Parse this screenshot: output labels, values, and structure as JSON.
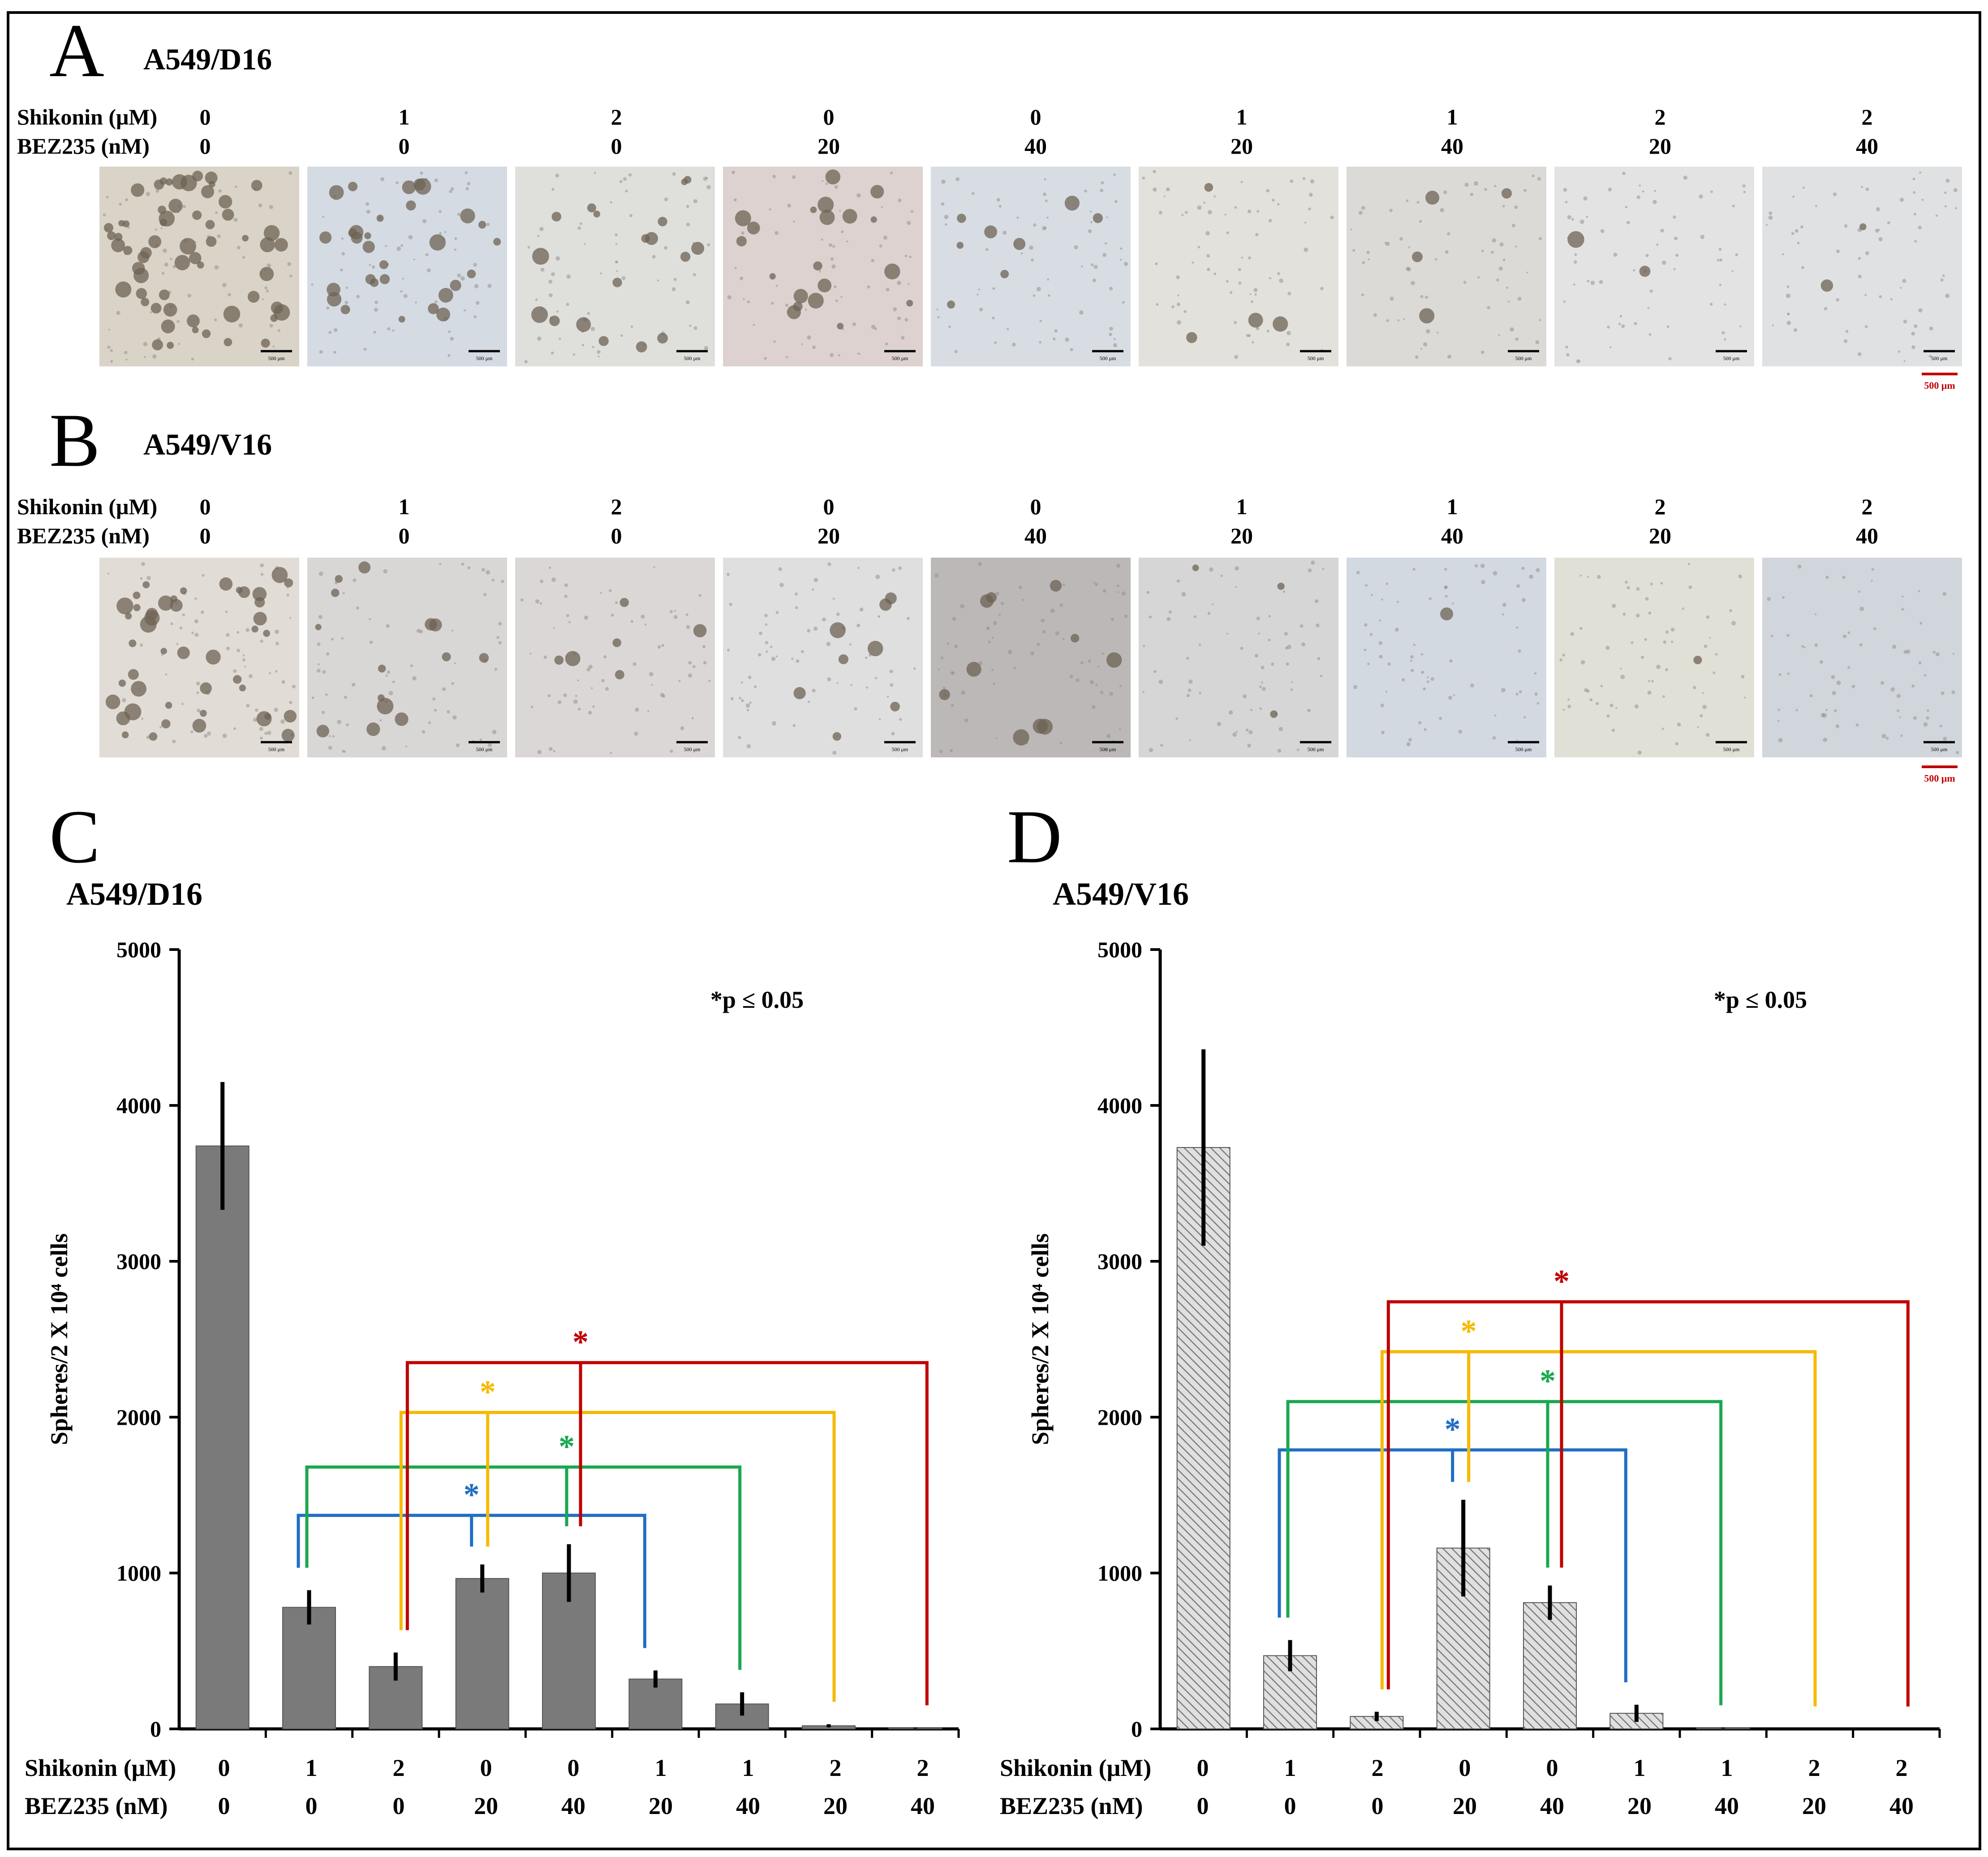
{
  "figure": {
    "panel_a": {
      "letter": "A",
      "cell_line": "A549/D16"
    },
    "panel_b": {
      "letter": "B",
      "cell_line": "A549/V16"
    },
    "panel_c": {
      "letter": "C",
      "cell_line": "A549/D16"
    },
    "panel_d": {
      "letter": "D",
      "cell_line": "A549/V16"
    },
    "condition_labels": {
      "shikonin": "Shikonin (μM)",
      "bez235": "BEZ235 (nM)"
    },
    "shikonin_values": [
      "0",
      "1",
      "2",
      "0",
      "0",
      "1",
      "1",
      "2",
      "2"
    ],
    "bez235_values": [
      "0",
      "0",
      "0",
      "20",
      "40",
      "20",
      "40",
      "20",
      "40"
    ],
    "image_scalebar_label": "500 μm",
    "red_scalebar_label": "500 μm",
    "colors": {
      "blue": "#1f6fc4",
      "green": "#1aa84f",
      "yellow": "#f7b900",
      "red": "#c00000",
      "bar_c": "#7a7a7a",
      "bar_d": "#bdbdbd"
    }
  },
  "chart_data": [
    {
      "type": "bar",
      "panel": "C",
      "title": "A549/D16",
      "ylabel": "Spheres/2 X 10⁴ cells",
      "ylim": [
        0,
        5000
      ],
      "yticks": [
        0,
        1000,
        2000,
        3000,
        4000,
        5000
      ],
      "ytick_labels": [
        "0",
        "1000",
        "2000",
        "3000",
        "4000",
        "5000"
      ],
      "categories": [
        "0/0",
        "1/0",
        "2/0",
        "0/20",
        "0/40",
        "1/20",
        "1/40",
        "2/20",
        "2/40"
      ],
      "values": [
        3740,
        780,
        400,
        965,
        1000,
        320,
        160,
        20,
        5
      ],
      "errors": [
        410,
        110,
        90,
        90,
        185,
        55,
        75,
        10,
        3
      ],
      "annotation": "*p ≤ 0.05",
      "significance_brackets": [
        {
          "color": "blue",
          "from": "1/0",
          "to": "1/20",
          "mid": "0/20",
          "level": 1370
        },
        {
          "color": "green",
          "from": "1/0",
          "to": "1/40",
          "mid": "0/40",
          "level": 1680
        },
        {
          "color": "yellow",
          "from": "2/0",
          "to": "2/20",
          "mid": "0/20",
          "level": 2030
        },
        {
          "color": "red",
          "from": "2/0",
          "to": "2/40",
          "mid": "0/40",
          "level": 2350
        }
      ]
    },
    {
      "type": "bar",
      "panel": "D",
      "title": "A549/V16",
      "ylabel": "Spheres/2 X 10⁴ cells",
      "ylim": [
        0,
        5000
      ],
      "yticks": [
        0,
        1000,
        2000,
        3000,
        4000,
        5000
      ],
      "ytick_labels": [
        "0",
        "1000",
        "2000",
        "3000",
        "4000",
        "5000"
      ],
      "categories": [
        "0/0",
        "1/0",
        "2/0",
        "0/20",
        "0/40",
        "1/20",
        "1/40",
        "2/20",
        "2/40"
      ],
      "values": [
        3730,
        470,
        80,
        1160,
        810,
        100,
        5,
        0,
        0
      ],
      "errors": [
        630,
        100,
        30,
        310,
        110,
        55,
        3,
        0,
        0
      ],
      "annotation": "*p ≤ 0.05",
      "significance_brackets": [
        {
          "color": "blue",
          "from": "1/0",
          "to": "1/20",
          "mid": "0/20",
          "level": 1790
        },
        {
          "color": "green",
          "from": "1/0",
          "to": "1/40",
          "mid": "0/40",
          "level": 2100
        },
        {
          "color": "yellow",
          "from": "2/0",
          "to": "2/20",
          "mid": "0/20",
          "level": 2420
        },
        {
          "color": "red",
          "from": "2/0",
          "to": "2/40",
          "mid": "0/40",
          "level": 2740
        }
      ]
    }
  ]
}
